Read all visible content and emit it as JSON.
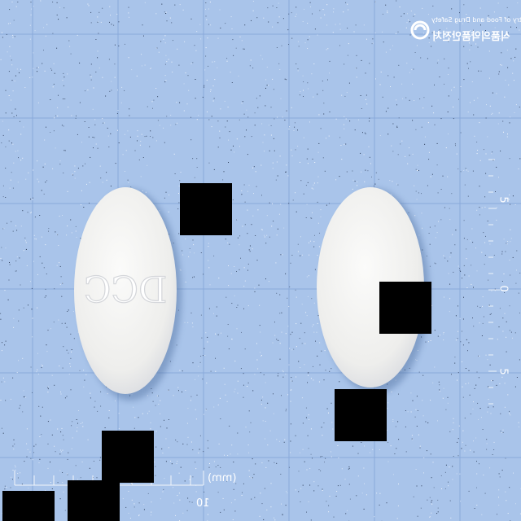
{
  "photo": {
    "subject": "pill-identification-photo",
    "background_color": "#a9c4ea",
    "grid_color": "#7fa3d8",
    "pill_color": "#f4f4f2",
    "occluder_color": "#000000"
  },
  "logo": {
    "icon": "circular-emblem-icon",
    "line1": "Ministry of Food and Drug Safety",
    "line2": "식품의약품안전처"
  },
  "pills": [
    {
      "name": "pill-front",
      "imprint": "DCC"
    },
    {
      "name": "pill-back",
      "imprint": ""
    }
  ],
  "scale": {
    "unit_label": "(mm)",
    "bottom_number": "10",
    "right_numbers": [
      "5",
      "0",
      "5"
    ]
  }
}
